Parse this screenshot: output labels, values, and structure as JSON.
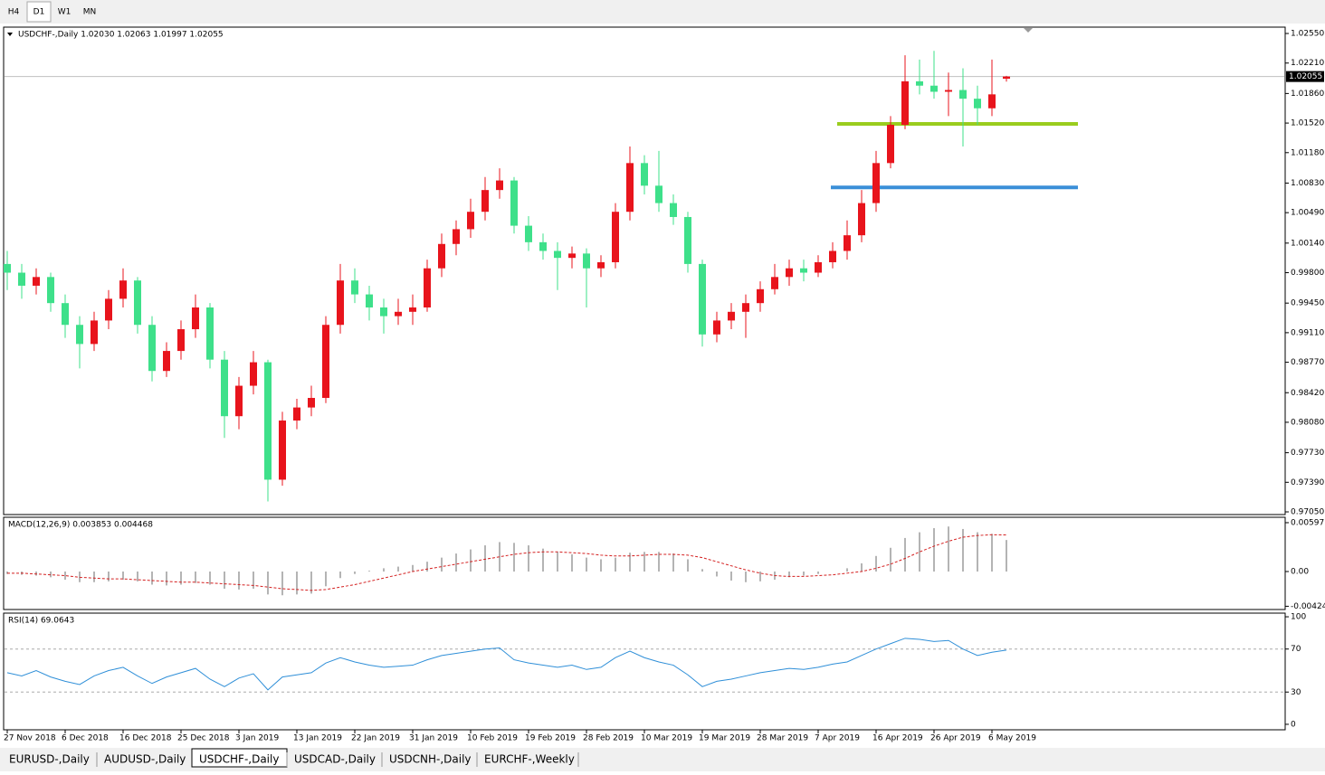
{
  "toolbar": {
    "timeframes": [
      "H4",
      "D1",
      "W1",
      "MN"
    ],
    "active": "D1"
  },
  "tabs": {
    "items": [
      "EURUSD-,Daily",
      "AUDUSD-,Daily",
      "USDCHF-,Daily",
      "USDCAD-,Daily",
      "USDCNH-,Daily",
      "EURCHF-,Weekly"
    ],
    "active": "USDCHF-,Daily"
  },
  "chart_data": [
    {
      "type": "candlestick",
      "title": "USDCHF-,Daily 1.02030 1.02063 1.01997 1.02055",
      "categories": [
        "27 Nov 2018",
        null,
        null,
        null,
        "6 Dec 2018",
        null,
        null,
        null,
        "16 Dec 2018",
        null,
        null,
        null,
        "25 Dec 2018",
        null,
        null,
        null,
        "3 Jan 2019",
        null,
        null,
        null,
        "13 Jan 2019",
        null,
        null,
        null,
        "22 Jan 2019",
        null,
        null,
        null,
        "31 Jan 2019",
        null,
        null,
        null,
        "10 Feb 2019",
        null,
        null,
        null,
        "19 Feb 2019",
        null,
        null,
        null,
        "28 Feb 2019",
        null,
        null,
        null,
        "10 Mar 2019",
        null,
        null,
        null,
        "19 Mar 2019",
        null,
        null,
        null,
        "28 Mar 2019",
        null,
        null,
        null,
        "7 Apr 2019",
        null,
        null,
        null,
        "16 Apr 2019",
        null,
        null,
        null,
        "26 Apr 2019",
        null,
        null,
        null,
        "6 May 2019",
        null
      ],
      "candles": [
        [
          0.999,
          1.0005,
          0.996,
          0.998
        ],
        [
          0.998,
          0.999,
          0.995,
          0.9965
        ],
        [
          0.9965,
          0.9985,
          0.9955,
          0.9975
        ],
        [
          0.9975,
          0.998,
          0.9935,
          0.9945
        ],
        [
          0.9945,
          0.9955,
          0.9905,
          0.992
        ],
        [
          0.992,
          0.993,
          0.987,
          0.9898
        ],
        [
          0.9898,
          0.9935,
          0.989,
          0.9925
        ],
        [
          0.9925,
          0.996,
          0.9915,
          0.995
        ],
        [
          0.995,
          0.9985,
          0.994,
          0.9971
        ],
        [
          0.9971,
          0.9975,
          0.991,
          0.992
        ],
        [
          0.992,
          0.993,
          0.9855,
          0.9867
        ],
        [
          0.9867,
          0.99,
          0.986,
          0.989
        ],
        [
          0.989,
          0.9925,
          0.988,
          0.9915
        ],
        [
          0.9915,
          0.9955,
          0.9905,
          0.994
        ],
        [
          0.994,
          0.9945,
          0.987,
          0.988
        ],
        [
          0.988,
          0.989,
          0.979,
          0.9815
        ],
        [
          0.9815,
          0.986,
          0.98,
          0.985
        ],
        [
          0.985,
          0.989,
          0.984,
          0.9877
        ],
        [
          0.9877,
          0.988,
          0.9717,
          0.9742
        ],
        [
          0.9742,
          0.982,
          0.9735,
          0.981
        ],
        [
          0.981,
          0.9835,
          0.98,
          0.9825
        ],
        [
          0.9825,
          0.985,
          0.9815,
          0.9836
        ],
        [
          0.9836,
          0.993,
          0.983,
          0.992
        ],
        [
          0.992,
          0.999,
          0.991,
          0.9971
        ],
        [
          0.9971,
          0.9985,
          0.9945,
          0.9955
        ],
        [
          0.9955,
          0.9965,
          0.9925,
          0.994
        ],
        [
          0.994,
          0.995,
          0.991,
          0.993
        ],
        [
          0.993,
          0.995,
          0.992,
          0.9935
        ],
        [
          0.9935,
          0.9955,
          0.992,
          0.994
        ],
        [
          0.994,
          0.9995,
          0.9935,
          0.9985
        ],
        [
          0.9985,
          1.0025,
          0.9975,
          1.0013
        ],
        [
          1.0013,
          1.004,
          1.0,
          1.003
        ],
        [
          1.003,
          1.0065,
          1.002,
          1.005
        ],
        [
          1.005,
          1.009,
          1.004,
          1.0075
        ],
        [
          1.0075,
          1.01,
          1.0065,
          1.0086
        ],
        [
          1.0086,
          1.009,
          1.0025,
          1.0034
        ],
        [
          1.0034,
          1.0045,
          1.0005,
          1.0015
        ],
        [
          1.0015,
          1.0025,
          0.9995,
          1.0005
        ],
        [
          1.0005,
          1.0015,
          0.996,
          0.9997
        ],
        [
          0.9997,
          1.001,
          0.9985,
          1.0002
        ],
        [
          1.0002,
          1.0008,
          0.994,
          0.9985
        ],
        [
          0.9985,
          1.0,
          0.9975,
          0.9992
        ],
        [
          0.9992,
          1.006,
          0.9985,
          1.005
        ],
        [
          1.005,
          1.0125,
          1.004,
          1.0106
        ],
        [
          1.0106,
          1.0115,
          1.007,
          1.008
        ],
        [
          1.008,
          1.012,
          1.005,
          1.006
        ],
        [
          1.006,
          1.007,
          1.0035,
          1.0044
        ],
        [
          1.0044,
          1.005,
          0.998,
          0.999
        ],
        [
          0.999,
          0.9995,
          0.9895,
          0.9909
        ],
        [
          0.9909,
          0.9935,
          0.99,
          0.9925
        ],
        [
          0.9925,
          0.9945,
          0.9915,
          0.9935
        ],
        [
          0.9935,
          0.9955,
          0.9905,
          0.9945
        ],
        [
          0.9945,
          0.997,
          0.9935,
          0.9961
        ],
        [
          0.9961,
          0.999,
          0.9955,
          0.9975
        ],
        [
          0.9975,
          0.9995,
          0.9965,
          0.9985
        ],
        [
          0.9985,
          0.9995,
          0.997,
          0.998
        ],
        [
          0.998,
          1.0,
          0.9975,
          0.9992
        ],
        [
          0.9992,
          1.0015,
          0.9985,
          1.0005
        ],
        [
          1.0005,
          1.004,
          0.9995,
          1.0023
        ],
        [
          1.0023,
          1.0075,
          1.0015,
          1.006
        ],
        [
          1.006,
          1.012,
          1.005,
          1.0106
        ],
        [
          1.0106,
          1.016,
          1.01,
          1.015
        ],
        [
          1.015,
          1.023,
          1.0145,
          1.02
        ],
        [
          1.02,
          1.0225,
          1.0185,
          1.0195
        ],
        [
          1.0195,
          1.0235,
          1.018,
          1.0188
        ],
        [
          1.0188,
          1.021,
          1.016,
          1.019
        ],
        [
          1.019,
          1.0215,
          1.0125,
          1.018
        ],
        [
          1.018,
          1.0195,
          1.015,
          1.0169
        ],
        [
          1.0169,
          1.0225,
          1.016,
          1.0185
        ],
        [
          1.0203,
          1.02063,
          1.01997,
          1.02055
        ]
      ],
      "up_color": "#e8141c",
      "down_color": "#3ee08a",
      "ylim": [
        0.97019,
        1.02623
      ],
      "yticks": [
        {
          "value": 1.0255,
          "label": "1.02550"
        },
        {
          "value": 1.0221,
          "label": "1.02210"
        },
        {
          "value": 1.0186,
          "label": "1.01860"
        },
        {
          "value": 1.0152,
          "label": "1.01520"
        },
        {
          "value": 1.0118,
          "label": "1.01180"
        },
        {
          "value": 1.0083,
          "label": "1.00830"
        },
        {
          "value": 1.0049,
          "label": "1.00490"
        },
        {
          "value": 1.0014,
          "label": "1.00140"
        },
        {
          "value": 0.998,
          "label": "0.99800"
        },
        {
          "value": 0.9945,
          "label": "0.99450"
        },
        {
          "value": 0.9911,
          "label": "0.99110"
        },
        {
          "value": 0.9877,
          "label": "0.98770"
        },
        {
          "value": 0.9842,
          "label": "0.98420"
        },
        {
          "value": 0.9808,
          "label": "0.98080"
        },
        {
          "value": 0.9773,
          "label": "0.97730"
        },
        {
          "value": 0.9739,
          "label": "0.97390"
        },
        {
          "value": 0.9705,
          "label": "0.97050"
        }
      ],
      "last_price": 1.02055,
      "levels": [
        {
          "value": 1.0151,
          "color": "#9acd1e"
        },
        {
          "value": 1.0078,
          "color": "#3a8fd8"
        }
      ]
    },
    {
      "type": "macd",
      "title": "MACD(12,26,9) 0.003853 0.004468",
      "bar_color": "#b4b4b4",
      "signal_color": "#d42020",
      "values": [
        -0.0003,
        -0.0004,
        -0.0005,
        -0.0007,
        -0.001,
        -0.0013,
        -0.0013,
        -0.0012,
        -0.001,
        -0.0012,
        -0.0016,
        -0.0017,
        -0.0016,
        -0.0014,
        -0.0016,
        -0.0021,
        -0.0022,
        -0.0021,
        -0.0028,
        -0.0029,
        -0.0028,
        -0.0027,
        -0.0018,
        -0.0008,
        -0.0003,
        0.0001,
        0.0004,
        0.0006,
        0.0008,
        0.0012,
        0.0017,
        0.0022,
        0.0027,
        0.0032,
        0.0036,
        0.0035,
        0.0032,
        0.0028,
        0.0024,
        0.0021,
        0.0017,
        0.0015,
        0.0017,
        0.0023,
        0.0024,
        0.0024,
        0.0022,
        0.0015,
        0.0003,
        -0.0006,
        -0.0011,
        -0.0013,
        -0.0012,
        -0.001,
        -0.0007,
        -0.0005,
        -0.0003,
        0.0,
        0.0004,
        0.001,
        0.0019,
        0.0029,
        0.0041,
        0.0048,
        0.0053,
        0.0055,
        0.0052,
        0.0048,
        0.0046,
        0.003853
      ],
      "signal": [
        -0.0002,
        -0.0002,
        -0.0003,
        -0.0004,
        -0.0005,
        -0.0007,
        -0.0008,
        -0.0009,
        -0.0009,
        -0.001,
        -0.0011,
        -0.0012,
        -0.0013,
        -0.0013,
        -0.0014,
        -0.0015,
        -0.0016,
        -0.0017,
        -0.0019,
        -0.0021,
        -0.0022,
        -0.0023,
        -0.0022,
        -0.0019,
        -0.0016,
        -0.0012,
        -0.0008,
        -0.0004,
        0.0,
        0.0003,
        0.0006,
        0.0009,
        0.0012,
        0.0015,
        0.0018,
        0.0021,
        0.0023,
        0.0024,
        0.0024,
        0.0023,
        0.0022,
        0.002,
        0.0019,
        0.0019,
        0.002,
        0.0021,
        0.0021,
        0.002,
        0.0017,
        0.0012,
        0.0007,
        0.0002,
        -0.0002,
        -0.0005,
        -0.0006,
        -0.0006,
        -0.0005,
        -0.0004,
        -0.0002,
        0.0,
        0.0004,
        0.0009,
        0.0016,
        0.0024,
        0.0031,
        0.0037,
        0.0042,
        0.0044,
        0.0045,
        0.004468
      ],
      "ylim": [
        -0.00464,
        0.00663
      ],
      "yticks": [
        0.00597,
        {
          "value": 0,
          "label": "0.00"
        },
        -0.004243
      ]
    },
    {
      "type": "rsi",
      "title": "RSI(14) 69.0643",
      "color": "#2f8fd8",
      "values": [
        48,
        45,
        50,
        44,
        40,
        37,
        45,
        50,
        53,
        45,
        38,
        44,
        48,
        52,
        42,
        35,
        43,
        47,
        32,
        44,
        46,
        48,
        57,
        62,
        58,
        55,
        53,
        54,
        55,
        60,
        64,
        66,
        68,
        70,
        71,
        60,
        57,
        55,
        53,
        55,
        51,
        53,
        62,
        68,
        62,
        58,
        55,
        46,
        35,
        40,
        42,
        45,
        48,
        50,
        52,
        51,
        53,
        56,
        58,
        64,
        70,
        75,
        80,
        79,
        77,
        78,
        70,
        64,
        67,
        69.0643
      ],
      "ylim": [
        -5.1,
        103.4
      ],
      "yticks": [
        0,
        30,
        70,
        100
      ],
      "levels": [
        30,
        70
      ]
    }
  ]
}
